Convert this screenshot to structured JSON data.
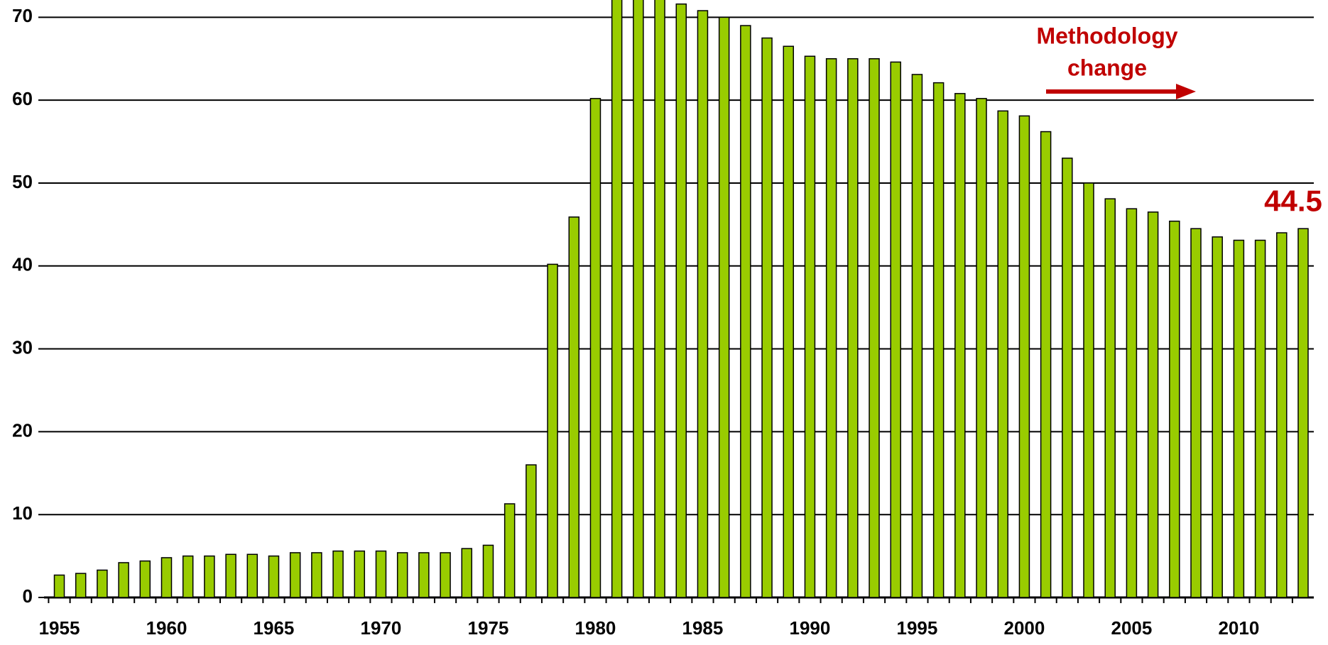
{
  "chart_data": {
    "type": "bar",
    "categories": [
      "1955",
      null,
      null,
      null,
      null,
      "1960",
      null,
      null,
      null,
      null,
      "1965",
      null,
      null,
      null,
      null,
      "1970",
      null,
      null,
      null,
      null,
      "1975",
      null,
      null,
      null,
      null,
      "1980",
      null,
      null,
      null,
      null,
      "1985",
      null,
      null,
      null,
      null,
      "1990",
      null,
      null,
      null,
      null,
      "1995",
      null,
      null,
      null,
      null,
      "2000",
      null,
      null,
      null,
      null,
      "2005",
      null,
      null,
      null,
      null,
      "2010",
      null,
      null,
      null
    ],
    "values": [
      2.7,
      2.9,
      3.3,
      4.2,
      4.4,
      4.8,
      5.0,
      5.0,
      5.2,
      5.2,
      5.0,
      5.4,
      5.4,
      5.6,
      5.6,
      5.6,
      5.4,
      5.4,
      5.4,
      5.9,
      6.3,
      11.3,
      16.0,
      40.2,
      45.9,
      60.2,
      73.0,
      73.5,
      74.0,
      71.6,
      70.8,
      70.0,
      69.0,
      67.5,
      66.5,
      65.3,
      65.0,
      65.0,
      65.0,
      64.6,
      63.1,
      62.1,
      60.8,
      60.2,
      58.7,
      58.1,
      56.2,
      53.0,
      50.0,
      48.1,
      46.9,
      46.5,
      45.4,
      44.5,
      43.5,
      43.1,
      43.1,
      44.0,
      44.5
    ],
    "value_labels": [
      null,
      null,
      null,
      null,
      null,
      null,
      null,
      null,
      null,
      null,
      null,
      null,
      null,
      null,
      null,
      null,
      null,
      null,
      null,
      null,
      null,
      null,
      null,
      null,
      null,
      null,
      null,
      null,
      null,
      null,
      null,
      null,
      null,
      null,
      null,
      null,
      null,
      null,
      null,
      null,
      null,
      null,
      null,
      null,
      null,
      null,
      null,
      null,
      null,
      null,
      null,
      null,
      null,
      null,
      null,
      null,
      null,
      null,
      "44.5"
    ],
    "color": "#99cc00",
    "ylim": [
      0,
      72
    ],
    "yticks": [
      0,
      10,
      20,
      30,
      40,
      50,
      60,
      70
    ],
    "grid": true,
    "annotations": [
      {
        "lines": [
          "Methodology",
          "change"
        ],
        "color": "#c00000"
      }
    ]
  }
}
